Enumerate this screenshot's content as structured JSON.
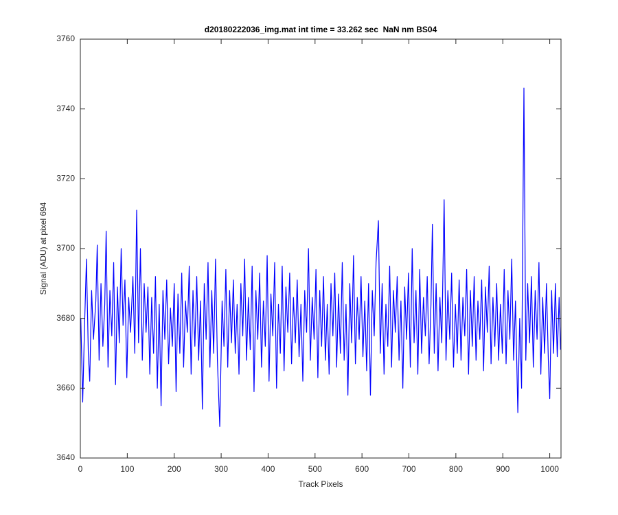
{
  "chart_data": {
    "type": "line",
    "title": "d20180222036_img.mat int time = 33.262 sec  NaN nm BS04",
    "xlabel": "Track Pixels",
    "ylabel": "Signal (ADU) at pixel 694",
    "color": "#0000ff",
    "xlim": [
      0,
      1024
    ],
    "xticks": [
      0,
      100,
      200,
      300,
      400,
      500,
      600,
      700,
      800,
      900,
      1000
    ],
    "ylim": [
      3640,
      3760
    ],
    "yticks": [
      3640,
      3660,
      3680,
      3700,
      3720,
      3740,
      3760
    ],
    "grid": false,
    "x": [
      1,
      5,
      9,
      13,
      17,
      20,
      24,
      28,
      33,
      36,
      40,
      44,
      48,
      52,
      55,
      59,
      63,
      67,
      71,
      75,
      79,
      83,
      87,
      91,
      95,
      99,
      103,
      107,
      112,
      116,
      120,
      124,
      128,
      132,
      136,
      140,
      144,
      148,
      152,
      156,
      160,
      164,
      168,
      172,
      176,
      180,
      184,
      188,
      192,
      196,
      200,
      204,
      208,
      212,
      216,
      220,
      224,
      228,
      232,
      236,
      240,
      244,
      248,
      252,
      256,
      260,
      264,
      268,
      272,
      276,
      280,
      284,
      288,
      292,
      297,
      302,
      306,
      310,
      314,
      318,
      322,
      326,
      330,
      334,
      338,
      342,
      346,
      350,
      354,
      358,
      362,
      366,
      370,
      374,
      378,
      382,
      386,
      390,
      394,
      398,
      402,
      406,
      410,
      414,
      418,
      422,
      426,
      430,
      434,
      438,
      442,
      446,
      450,
      454,
      458,
      462,
      466,
      470,
      474,
      478,
      482,
      486,
      490,
      494,
      498,
      502,
      506,
      510,
      514,
      518,
      522,
      526,
      530,
      534,
      538,
      542,
      546,
      550,
      554,
      558,
      562,
      566,
      570,
      574,
      578,
      582,
      586,
      590,
      594,
      598,
      602,
      606,
      610,
      614,
      618,
      622,
      626,
      630,
      635,
      639,
      643,
      647,
      651,
      655,
      659,
      663,
      667,
      671,
      675,
      679,
      683,
      687,
      691,
      695,
      699,
      703,
      707,
      711,
      715,
      719,
      723,
      727,
      731,
      735,
      739,
      743,
      747,
      750,
      754,
      758,
      762,
      766,
      770,
      775,
      779,
      783,
      787,
      791,
      795,
      799,
      803,
      807,
      811,
      815,
      819,
      823,
      827,
      831,
      835,
      839,
      843,
      847,
      851,
      855,
      859,
      863,
      867,
      871,
      875,
      879,
      883,
      887,
      891,
      895,
      899,
      903,
      907,
      911,
      915,
      919,
      923,
      927,
      932,
      936,
      940,
      945,
      949,
      953,
      957,
      961,
      965,
      969,
      973,
      977,
      981,
      985,
      989,
      993,
      997,
      1000,
      1004,
      1008,
      1012,
      1016,
      1020,
      1023
    ],
    "values": [
      3680,
      3656,
      3678,
      3697,
      3670,
      3662,
      3688,
      3674,
      3685,
      3701,
      3668,
      3690,
      3672,
      3684,
      3705,
      3666,
      3688,
      3675,
      3696,
      3661,
      3689,
      3673,
      3700,
      3678,
      3691,
      3663,
      3686,
      3676,
      3692,
      3670,
      3711,
      3673,
      3700,
      3668,
      3690,
      3676,
      3689,
      3664,
      3686,
      3670,
      3692,
      3660,
      3684,
      3655,
      3688,
      3674,
      3691,
      3667,
      3683,
      3672,
      3690,
      3659,
      3687,
      3670,
      3693,
      3666,
      3685,
      3676,
      3695,
      3664,
      3688,
      3672,
      3692,
      3668,
      3685,
      3654,
      3690,
      3674,
      3696,
      3666,
      3688,
      3670,
      3697,
      3668,
      3649,
      3685,
      3672,
      3694,
      3666,
      3688,
      3673,
      3691,
      3670,
      3684,
      3664,
      3690,
      3675,
      3697,
      3668,
      3686,
      3671,
      3695,
      3659,
      3688,
      3674,
      3693,
      3666,
      3685,
      3672,
      3698,
      3662,
      3687,
      3675,
      3696,
      3660,
      3684,
      3670,
      3695,
      3665,
      3689,
      3676,
      3693,
      3667,
      3686,
      3673,
      3691,
      3669,
      3684,
      3662,
      3688,
      3676,
      3700,
      3668,
      3686,
      3674,
      3694,
      3663,
      3688,
      3672,
      3692,
      3668,
      3684,
      3664,
      3690,
      3675,
      3693,
      3666,
      3687,
      3670,
      3696,
      3668,
      3684,
      3658,
      3690,
      3673,
      3698,
      3667,
      3686,
      3674,
      3692,
      3669,
      3685,
      3665,
      3690,
      3658,
      3688,
      3675,
      3696,
      3708,
      3670,
      3690,
      3664,
      3684,
      3672,
      3695,
      3666,
      3688,
      3676,
      3692,
      3668,
      3685,
      3660,
      3689,
      3674,
      3693,
      3666,
      3700,
      3673,
      3688,
      3664,
      3694,
      3670,
      3686,
      3675,
      3692,
      3667,
      3684,
      3707,
      3670,
      3690,
      3665,
      3686,
      3673,
      3714,
      3668,
      3688,
      3674,
      3693,
      3666,
      3684,
      3670,
      3691,
      3668,
      3686,
      3675,
      3694,
      3664,
      3688,
      3672,
      3692,
      3668,
      3685,
      3674,
      3691,
      3665,
      3689,
      3676,
      3695,
      3667,
      3686,
      3672,
      3690,
      3668,
      3684,
      3670,
      3694,
      3667,
      3688,
      3674,
      3697,
      3668,
      3685,
      3653,
      3680,
      3660,
      3746,
      3668,
      3690,
      3673,
      3692,
      3666,
      3688,
      3674,
      3696,
      3664,
      3686,
      3670,
      3690,
      3668,
      3657,
      3688,
      3670,
      3690,
      3669,
      3686,
      3671
    ]
  }
}
